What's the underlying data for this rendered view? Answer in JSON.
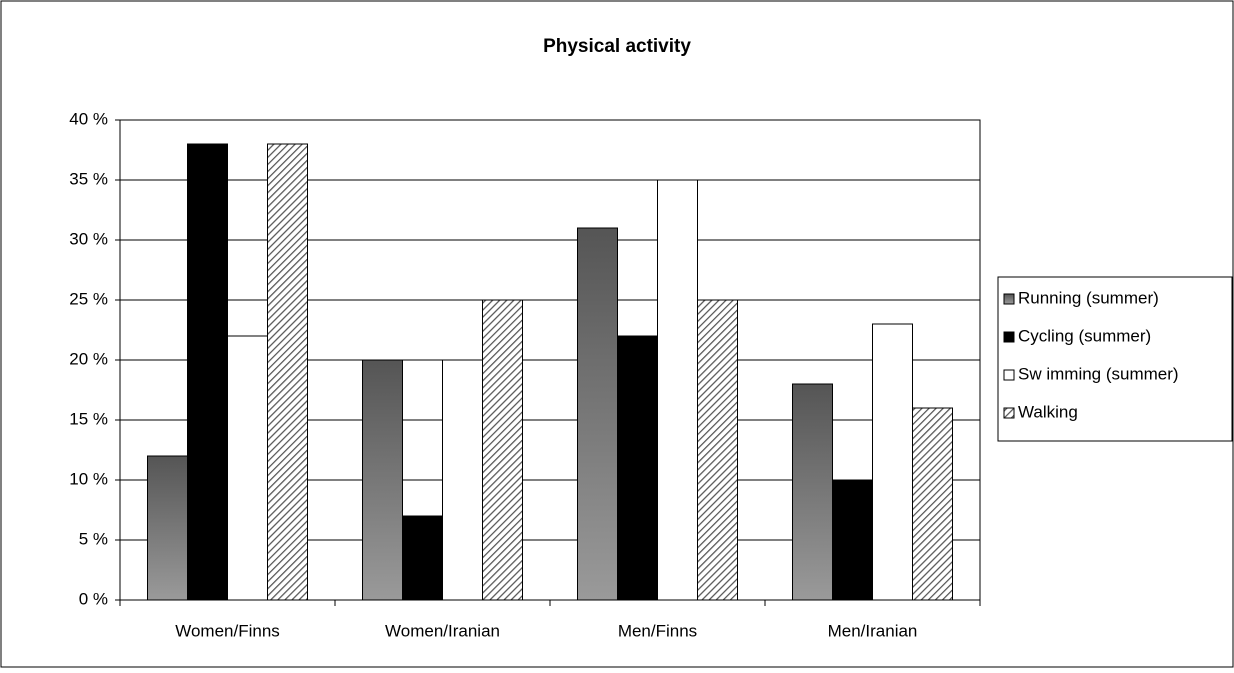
{
  "chart_data": {
    "type": "bar",
    "title": "Physical activity",
    "categories": [
      "Women/Finns",
      "Women/Iranian",
      "Men/Finns",
      "Men/Iranian"
    ],
    "series": [
      {
        "name": "Running (summer)",
        "color": "#6e6e6e",
        "values": [
          12,
          20,
          31,
          18
        ]
      },
      {
        "name": "Cycling (summer)",
        "color": "#000000",
        "values": [
          38,
          7,
          22,
          10
        ]
      },
      {
        "name": "Sw imming (summer)",
        "color": "#ffffff",
        "values": [
          22,
          20,
          35,
          23
        ]
      },
      {
        "name": "Walking",
        "color": "#555555",
        "values": [
          38,
          25,
          25,
          16
        ]
      }
    ],
    "ylim": [
      0,
      40
    ],
    "yticks": [
      {
        "value": 0,
        "label": "0 %"
      },
      {
        "value": 5,
        "label": "5 %"
      },
      {
        "value": 10,
        "label": "10 %"
      },
      {
        "value": 15,
        "label": "15 %"
      },
      {
        "value": 20,
        "label": "20 %"
      },
      {
        "value": 25,
        "label": "25 %"
      },
      {
        "value": 30,
        "label": "30 %"
      },
      {
        "value": 35,
        "label": "35 %"
      },
      {
        "value": 40,
        "label": "40 %"
      }
    ],
    "grid": true,
    "legend": "right"
  }
}
